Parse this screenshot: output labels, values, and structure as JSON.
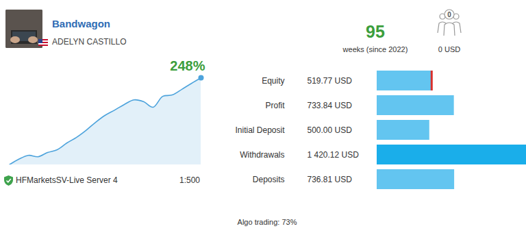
{
  "header": {
    "name": "Bandwagon",
    "owner": "ADELYN CASTILLO",
    "weeks": "95",
    "weeks_label": "weeks (since 2022)",
    "subscribers": "0",
    "subscriber_funds": "0 USD",
    "server": "HFMarketsSV-Live Server 4",
    "leverage": "1:500",
    "algo_trading": "Algo trading: 73%"
  },
  "chart_data": [
    {
      "type": "area",
      "title": "248%",
      "categories": [
        null,
        null,
        null,
        null,
        null,
        null,
        null,
        null,
        null,
        null,
        null,
        null,
        null,
        null,
        null,
        null,
        null,
        null,
        null,
        null,
        null
      ],
      "values": [
        0,
        16,
        27,
        23,
        35,
        43,
        62,
        78,
        98,
        121,
        141,
        156,
        172,
        185,
        180,
        164,
        195,
        199,
        215,
        232,
        248
      ],
      "color": "#4da3dc",
      "ylim": [
        0,
        248
      ],
      "tick_labels": false
    },
    {
      "type": "bar",
      "orientation": "horizontal",
      "categories": [
        "Equity",
        "Profit",
        "Initial Deposit",
        "Withdrawals",
        "Deposits"
      ],
      "values": [
        519.77,
        733.84,
        500.0,
        1420.12,
        736.81
      ],
      "value_labels": [
        "519.77 USD",
        "733.84 USD",
        "500.00 USD",
        "1 420.12 USD",
        "736.81 USD"
      ],
      "colors": [
        "#63c5f0",
        "#63c5f0",
        "#63c5f0",
        "#1aaeea",
        "#63c5f0"
      ],
      "xlim": [
        0,
        1420.12
      ],
      "tick_labels": "y",
      "data_labels": true
    }
  ]
}
